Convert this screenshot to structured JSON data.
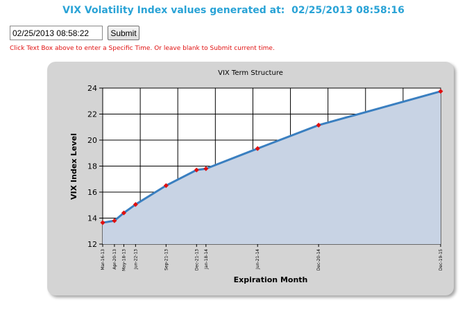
{
  "header": {
    "label": "VIX Volatility Index values generated at:",
    "timestamp": "02/25/2013 08:58:16"
  },
  "form": {
    "time_value": "02/25/2013 08:58:22",
    "submit_label": "Submit",
    "hint": "Click Text Box above to enter a Specific Time.  Or leave blank to Submit current time."
  },
  "colors": {
    "title": "#2aa3d6",
    "hint": "#e01010",
    "line": "#3a7fc0",
    "fill": "#c8d3e4",
    "marker": "#e01010"
  },
  "chart_data": {
    "type": "area",
    "title": "VIX Term Structure",
    "xlabel": "Expiration Month",
    "ylabel": "VIX Index Level",
    "ylim": [
      12,
      24
    ],
    "yticks": [
      12,
      14,
      16,
      18,
      20,
      22,
      24
    ],
    "grid": true,
    "x_format": "date",
    "xlim": [
      "2013-03-16",
      "2013-12-19"
    ],
    "points": [
      {
        "label": "Mar-16-13",
        "date": "2013-03-16",
        "value": 13.65
      },
      {
        "label": "Apr-20-13",
        "date": "2013-04-20",
        "value": 13.8
      },
      {
        "label": "May-18-13",
        "date": "2013-05-18",
        "value": 14.4
      },
      {
        "label": "Jun-22-13",
        "date": "2013-06-22",
        "value": 15.05
      },
      {
        "label": "Sep-21-13",
        "date": "2013-09-21",
        "value": 16.5
      },
      {
        "label": "Dec-21-13",
        "date": "2013-12-21",
        "value": 17.7
      },
      {
        "label": "Jan-18-14",
        "date": "2014-01-18",
        "value": 17.8
      },
      {
        "label": "Jun-21-14",
        "date": "2014-06-21",
        "value": 19.35
      },
      {
        "label": "Dec-20-14",
        "date": "2014-12-20",
        "value": 21.15
      },
      {
        "label": "Dec-19-15",
        "date": "2015-12-19",
        "value": 23.75
      }
    ]
  }
}
